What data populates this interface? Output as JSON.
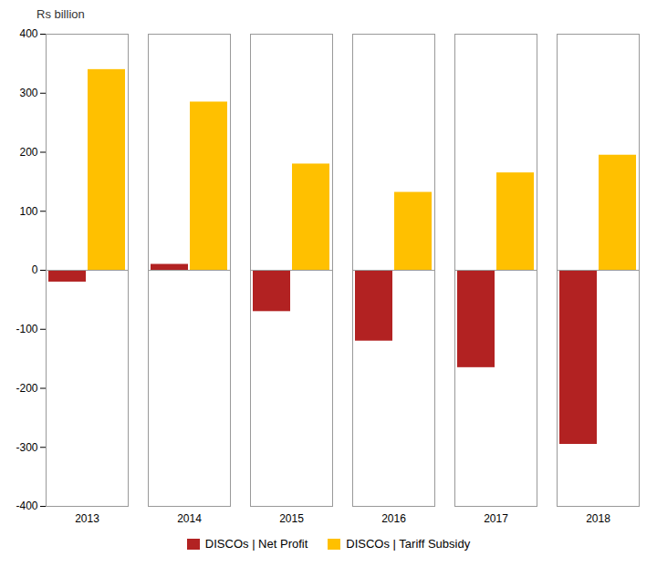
{
  "chart_data": {
    "type": "bar",
    "categories": [
      "2013",
      "2014",
      "2015",
      "2016",
      "2017",
      "2018"
    ],
    "series": [
      {
        "name": "DISCOs | Net Profit",
        "color": "#B22222",
        "values": [
          -20,
          10,
          -70,
          -120,
          -165,
          -295
        ]
      },
      {
        "name": "DISCOs | Tariff Subsidy",
        "color": "#FFC000",
        "values": [
          340,
          285,
          180,
          132,
          165,
          195
        ]
      }
    ],
    "ylabel": "Rs billion",
    "ylim": [
      -400,
      400
    ],
    "yticks": [
      -400,
      -300,
      -200,
      -100,
      0,
      100,
      200,
      300,
      400
    ],
    "grid": false,
    "legend": "bottom"
  }
}
